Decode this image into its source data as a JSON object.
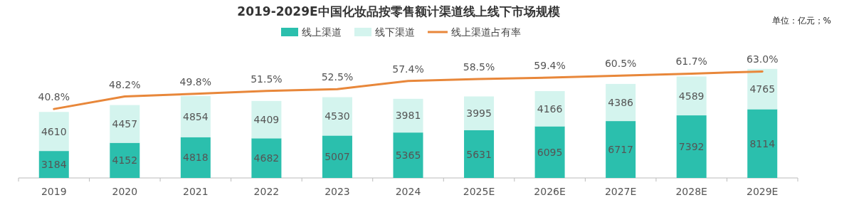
{
  "chart_data": {
    "type": "bar",
    "title": "2019-2029E中国化妆品按零售额计渠道线上线下市场规模",
    "annotations": [
      "单位：亿元；%"
    ],
    "categories": [
      "2019",
      "2020",
      "2021",
      "2022",
      "2023",
      "2024",
      "2025E",
      "2026E",
      "2027E",
      "2028E",
      "2029E"
    ],
    "stacked": true,
    "data_labels": true,
    "legend": "top",
    "grid": false,
    "tick_labels": "x",
    "series": [
      {
        "name": "线上渠道",
        "color": "#2bbfad",
        "values": [
          3184,
          4152,
          4818,
          4682,
          5007,
          5365,
          5631,
          6095,
          6717,
          7392,
          8114
        ]
      },
      {
        "name": "线下渠道",
        "color": "#d4f4ee",
        "values": [
          4610,
          4457,
          4854,
          4409,
          4530,
          3981,
          3995,
          4166,
          4386,
          4589,
          4765
        ]
      },
      {
        "name": "线上渠道占有率",
        "type": "line",
        "axis": "y2",
        "color": "#e8873a",
        "marker": "none",
        "line_style": "solid",
        "value_labels": [
          "40.8%",
          "48.2%",
          "49.8%",
          "51.5%",
          "52.5%",
          "57.4%",
          "58.5%",
          "59.4%",
          "60.5%",
          "61.7%",
          "63.0%"
        ],
        "values": [
          40.8,
          48.2,
          49.8,
          51.5,
          52.5,
          57.4,
          58.5,
          59.4,
          60.5,
          61.7,
          63.0
        ]
      }
    ]
  }
}
